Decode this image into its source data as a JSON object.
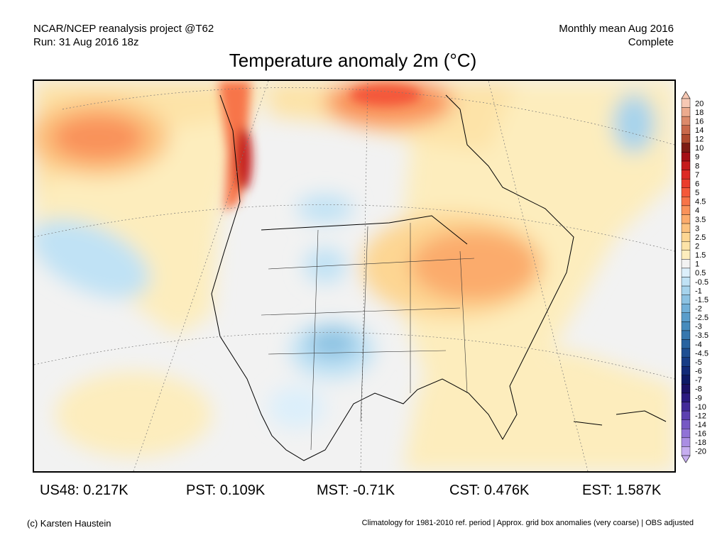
{
  "header": {
    "project": "NCAR/NCEP reanalysis project @T62",
    "run": "Run: 31 Aug 2016 18z",
    "mean": "Monthly mean Aug 2016",
    "status": "Complete"
  },
  "title": "Temperature anomaly 2m (°C)",
  "colorbar": {
    "labels": [
      "20",
      "18",
      "16",
      "14",
      "12",
      "10",
      "9",
      "8",
      "7",
      "6",
      "5",
      "4.5",
      "4",
      "3.5",
      "3",
      "2.5",
      "2",
      "1.5",
      "1",
      "0.5",
      "-0.5",
      "-1",
      "-1.5",
      "-2",
      "-2.5",
      "-3",
      "-3.5",
      "-4",
      "-4.5",
      "-5",
      "-6",
      "-7",
      "-8",
      "-9",
      "-10",
      "-12",
      "-14",
      "-16",
      "-18",
      "-20"
    ],
    "colors": [
      "#f6c8b4",
      "#ecab8e",
      "#dc8a6a",
      "#c9694a",
      "#b04a2e",
      "#7e1c14",
      "#a50f15",
      "#c51b1b",
      "#dc2a24",
      "#ea3d2c",
      "#f4593a",
      "#f77448",
      "#f9925a",
      "#fbab6c",
      "#fcc27f",
      "#fdd693",
      "#fde3a8",
      "#fdedbd",
      "#f2f2f2",
      "#dceffb",
      "#c0e2f5",
      "#a6d3ec",
      "#8cc2e2",
      "#72b0d8",
      "#5a9dcb",
      "#468bbd",
      "#3677ae",
      "#2863a0",
      "#1e4f93",
      "#163c86",
      "#112a78",
      "#0e1a66",
      "#1c1266",
      "#2b1a80",
      "#432a99",
      "#5c40b0",
      "#7658c4",
      "#9072d6",
      "#aa8ee3",
      "#c6aef0"
    ]
  },
  "stats": [
    {
      "label": "US48: 0.217K"
    },
    {
      "label": "PST: 0.109K"
    },
    {
      "label": "MST: -0.71K"
    },
    {
      "label": "CST: 0.476K"
    },
    {
      "label": "EST: 1.587K"
    }
  ],
  "footer": {
    "credit": "(c) Karsten Haustein",
    "note": "Climatology for 1981-2010 ref. period | Approx. grid box anomalies (very coarse) | OBS adjusted"
  }
}
